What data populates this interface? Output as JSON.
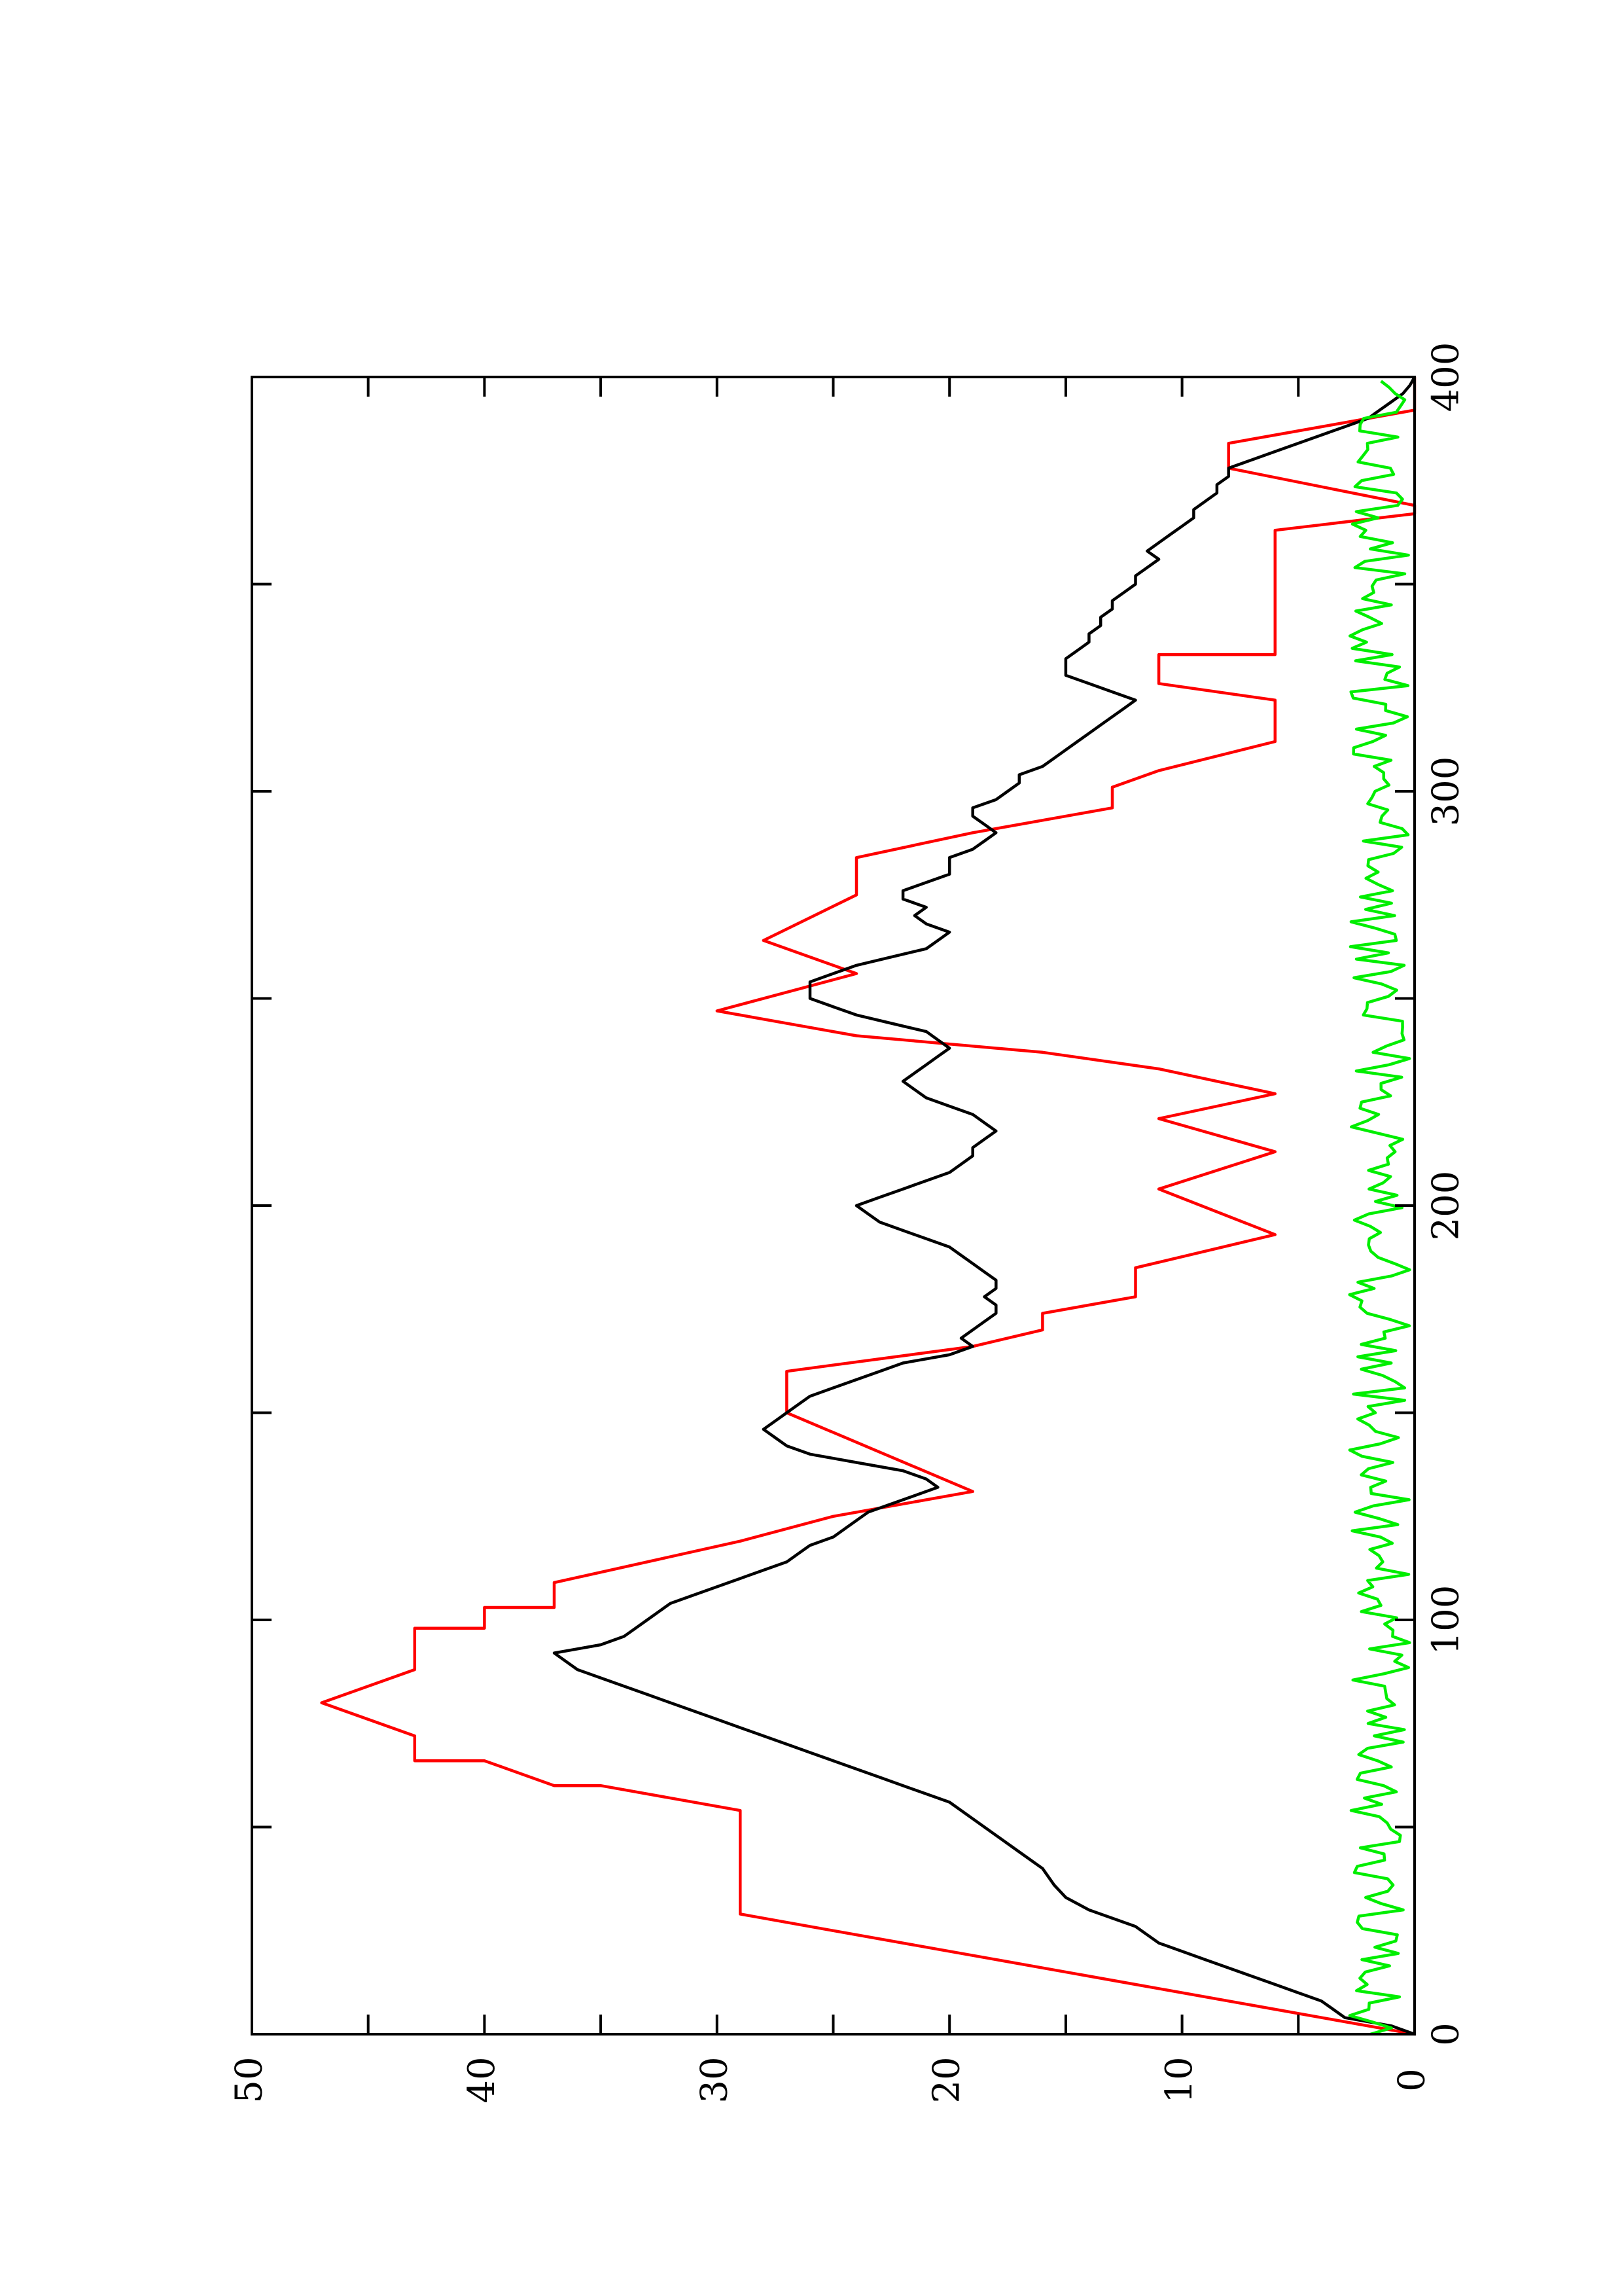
{
  "chart_data": {
    "type": "line",
    "orientation": "rotated 90deg counter-clockwise (x axis vertical, y axis horizontal)",
    "title": "",
    "xlabel": "",
    "ylabel": "",
    "xlim": [
      0,
      400
    ],
    "ylim": [
      0,
      50
    ],
    "x_ticks": [
      "0",
      "100",
      "200",
      "300",
      "400"
    ],
    "y_ticks": [
      "0",
      "10",
      "20",
      "30",
      "40",
      "50"
    ],
    "grid": false,
    "legend": "none",
    "series": [
      {
        "color": "#ff0000",
        "style": "stepped-ramp",
        "points": [
          [
            0,
            0
          ],
          [
            6,
            6
          ],
          [
            6,
            6
          ],
          [
            12,
            12
          ],
          [
            16,
            16
          ],
          [
            16,
            16
          ],
          [
            19,
            19
          ],
          [
            19,
            19
          ],
          [
            25,
            25
          ],
          [
            25,
            25
          ],
          [
            29,
            29
          ],
          [
            29,
            29
          ],
          [
            54,
            29
          ],
          [
            60,
            35
          ],
          [
            60,
            37
          ],
          [
            66,
            40
          ],
          [
            66,
            43
          ],
          [
            72,
            43
          ],
          [
            80,
            47
          ],
          [
            88,
            43
          ],
          [
            98,
            43
          ],
          [
            98,
            40
          ],
          [
            103,
            40
          ],
          [
            103,
            37
          ],
          [
            109,
            37
          ],
          [
            119,
            29
          ],
          [
            119,
            29
          ],
          [
            125,
            25
          ],
          [
            125,
            25
          ],
          [
            131,
            19
          ],
          [
            131,
            19
          ],
          [
            150,
            27
          ],
          [
            150,
            27
          ],
          [
            160,
            27
          ],
          [
            166,
            19
          ],
          [
            166,
            19
          ],
          [
            170,
            16
          ],
          [
            174,
            16
          ],
          [
            178,
            12
          ],
          [
            185,
            12
          ],
          [
            193,
            6
          ],
          [
            204,
            11
          ],
          [
            204,
            11
          ],
          [
            213,
            6
          ],
          [
            213,
            6
          ],
          [
            221,
            11
          ],
          [
            221,
            11
          ],
          [
            227,
            6
          ],
          [
            227,
            6
          ],
          [
            233,
            11
          ],
          [
            233,
            11
          ],
          [
            237,
            16
          ],
          [
            237,
            16
          ],
          [
            241,
            24
          ],
          [
            241,
            24
          ],
          [
            247,
            30
          ],
          [
            247,
            30
          ],
          [
            256,
            24
          ],
          [
            256,
            24
          ],
          [
            264,
            28
          ],
          [
            264,
            28
          ],
          [
            275,
            24
          ],
          [
            275,
            24
          ],
          [
            284,
            24
          ],
          [
            290,
            19
          ],
          [
            290,
            19
          ],
          [
            296,
            13
          ],
          [
            296,
            13
          ],
          [
            301,
            13
          ],
          [
            301,
            13
          ],
          [
            305,
            11
          ],
          [
            305,
            11
          ],
          [
            312,
            6
          ],
          [
            322,
            6
          ],
          [
            326,
            11
          ],
          [
            326,
            11
          ],
          [
            333,
            11
          ],
          [
            333,
            6
          ],
          [
            343,
            6
          ],
          [
            363,
            6
          ],
          [
            367,
            0
          ],
          [
            369,
            0
          ],
          [
            378,
            8
          ],
          [
            384,
            8
          ],
          [
            388,
            4
          ],
          [
            392,
            0
          ],
          [
            400,
            0
          ]
        ]
      },
      {
        "color": "#000000",
        "style": "line",
        "points": [
          [
            0,
            0
          ],
          [
            2,
            1
          ],
          [
            4,
            3
          ],
          [
            6,
            3.5
          ],
          [
            8,
            4
          ],
          [
            10,
            5
          ],
          [
            12,
            6
          ],
          [
            14,
            7
          ],
          [
            16,
            8
          ],
          [
            18,
            9
          ],
          [
            20,
            10
          ],
          [
            22,
            11
          ],
          [
            24,
            11.5
          ],
          [
            26,
            12
          ],
          [
            28,
            13
          ],
          [
            30,
            14
          ],
          [
            33,
            15
          ],
          [
            36,
            15.5
          ],
          [
            40,
            16
          ],
          [
            44,
            17
          ],
          [
            48,
            18
          ],
          [
            52,
            19
          ],
          [
            56,
            20
          ],
          [
            58,
            21
          ],
          [
            60,
            22
          ],
          [
            62,
            23
          ],
          [
            64,
            24
          ],
          [
            66,
            25
          ],
          [
            68,
            26
          ],
          [
            70,
            27
          ],
          [
            72,
            28
          ],
          [
            74,
            29
          ],
          [
            76,
            30
          ],
          [
            78,
            31
          ],
          [
            80,
            32
          ],
          [
            82,
            33
          ],
          [
            84,
            34
          ],
          [
            86,
            35
          ],
          [
            88,
            36
          ],
          [
            90,
            36.5
          ],
          [
            92,
            37
          ],
          [
            94,
            35
          ],
          [
            96,
            34
          ],
          [
            98,
            33.5
          ],
          [
            100,
            33
          ],
          [
            102,
            32.5
          ],
          [
            104,
            32
          ],
          [
            106,
            31
          ],
          [
            108,
            30
          ],
          [
            110,
            29
          ],
          [
            112,
            28
          ],
          [
            114,
            27
          ],
          [
            116,
            26.5
          ],
          [
            118,
            26
          ],
          [
            120,
            25
          ],
          [
            122,
            24.5
          ],
          [
            124,
            24
          ],
          [
            126,
            23.5
          ],
          [
            128,
            22.5
          ],
          [
            130,
            21.5
          ],
          [
            132,
            20.5
          ],
          [
            134,
            21
          ],
          [
            136,
            22
          ],
          [
            138,
            24
          ],
          [
            140,
            26
          ],
          [
            142,
            27
          ],
          [
            144,
            27.5
          ],
          [
            146,
            28
          ],
          [
            148,
            27.5
          ],
          [
            150,
            27
          ],
          [
            152,
            26.5
          ],
          [
            154,
            26
          ],
          [
            156,
            25
          ],
          [
            158,
            24
          ],
          [
            160,
            23
          ],
          [
            162,
            22
          ],
          [
            164,
            20
          ],
          [
            166,
            19
          ],
          [
            168,
            19.5
          ],
          [
            170,
            19
          ],
          [
            172,
            18.5
          ],
          [
            174,
            18
          ],
          [
            176,
            18
          ],
          [
            178,
            18.5
          ],
          [
            180,
            18
          ],
          [
            182,
            18
          ],
          [
            184,
            18.5
          ],
          [
            186,
            19
          ],
          [
            188,
            19.5
          ],
          [
            190,
            20
          ],
          [
            192,
            21
          ],
          [
            194,
            22
          ],
          [
            196,
            23
          ],
          [
            198,
            23.5
          ],
          [
            200,
            24
          ],
          [
            202,
            23
          ],
          [
            204,
            22
          ],
          [
            206,
            21
          ],
          [
            208,
            20
          ],
          [
            210,
            19.5
          ],
          [
            212,
            19
          ],
          [
            214,
            19
          ],
          [
            216,
            18.5
          ],
          [
            218,
            18
          ],
          [
            220,
            18.5
          ],
          [
            222,
            19
          ],
          [
            224,
            20
          ],
          [
            226,
            21
          ],
          [
            228,
            21.5
          ],
          [
            230,
            22
          ],
          [
            232,
            21.5
          ],
          [
            234,
            21
          ],
          [
            236,
            20.5
          ],
          [
            238,
            20
          ],
          [
            240,
            20.5
          ],
          [
            242,
            21
          ],
          [
            244,
            22.5
          ],
          [
            246,
            24
          ],
          [
            248,
            25
          ],
          [
            250,
            26
          ],
          [
            252,
            26
          ],
          [
            254,
            26
          ],
          [
            256,
            25
          ],
          [
            258,
            24
          ],
          [
            260,
            22.5
          ],
          [
            262,
            21
          ],
          [
            264,
            20.5
          ],
          [
            266,
            20
          ],
          [
            268,
            21
          ],
          [
            270,
            21.5
          ],
          [
            272,
            21
          ],
          [
            274,
            22
          ],
          [
            276,
            22
          ],
          [
            278,
            21
          ],
          [
            280,
            20
          ],
          [
            282,
            20
          ],
          [
            284,
            20
          ],
          [
            286,
            19
          ],
          [
            288,
            18.5
          ],
          [
            290,
            18
          ],
          [
            292,
            18.5
          ],
          [
            294,
            19
          ],
          [
            296,
            19
          ],
          [
            298,
            18
          ],
          [
            300,
            17.5
          ],
          [
            302,
            17
          ],
          [
            304,
            17
          ],
          [
            306,
            16
          ],
          [
            308,
            15.5
          ],
          [
            310,
            15
          ],
          [
            312,
            14.5
          ],
          [
            314,
            14
          ],
          [
            316,
            13.5
          ],
          [
            318,
            13
          ],
          [
            320,
            12.5
          ],
          [
            322,
            12
          ],
          [
            324,
            13
          ],
          [
            326,
            14
          ],
          [
            328,
            15
          ],
          [
            330,
            15
          ],
          [
            332,
            15
          ],
          [
            334,
            14.5
          ],
          [
            336,
            14
          ],
          [
            338,
            14
          ],
          [
            340,
            13.5
          ],
          [
            342,
            13.5
          ],
          [
            344,
            13
          ],
          [
            346,
            13
          ],
          [
            348,
            12.5
          ],
          [
            350,
            12
          ],
          [
            352,
            12
          ],
          [
            354,
            11.5
          ],
          [
            356,
            11
          ],
          [
            358,
            11.5
          ],
          [
            360,
            11
          ],
          [
            362,
            10.5
          ],
          [
            364,
            10
          ],
          [
            366,
            9.5
          ],
          [
            368,
            9.5
          ],
          [
            370,
            9
          ],
          [
            372,
            8.5
          ],
          [
            374,
            8.5
          ],
          [
            376,
            8
          ],
          [
            378,
            8
          ],
          [
            380,
            7
          ],
          [
            382,
            6
          ],
          [
            384,
            5
          ],
          [
            386,
            4
          ],
          [
            388,
            3
          ],
          [
            390,
            2
          ],
          [
            392,
            1.5
          ],
          [
            394,
            1
          ],
          [
            396,
            0.5
          ],
          [
            398,
            0.2
          ],
          [
            400,
            0
          ]
        ]
      },
      {
        "color": "#00ee00",
        "style": "noisy",
        "mean_y": 1.5,
        "amplitude": 1.3,
        "x_range": [
          0,
          400
        ]
      }
    ]
  }
}
